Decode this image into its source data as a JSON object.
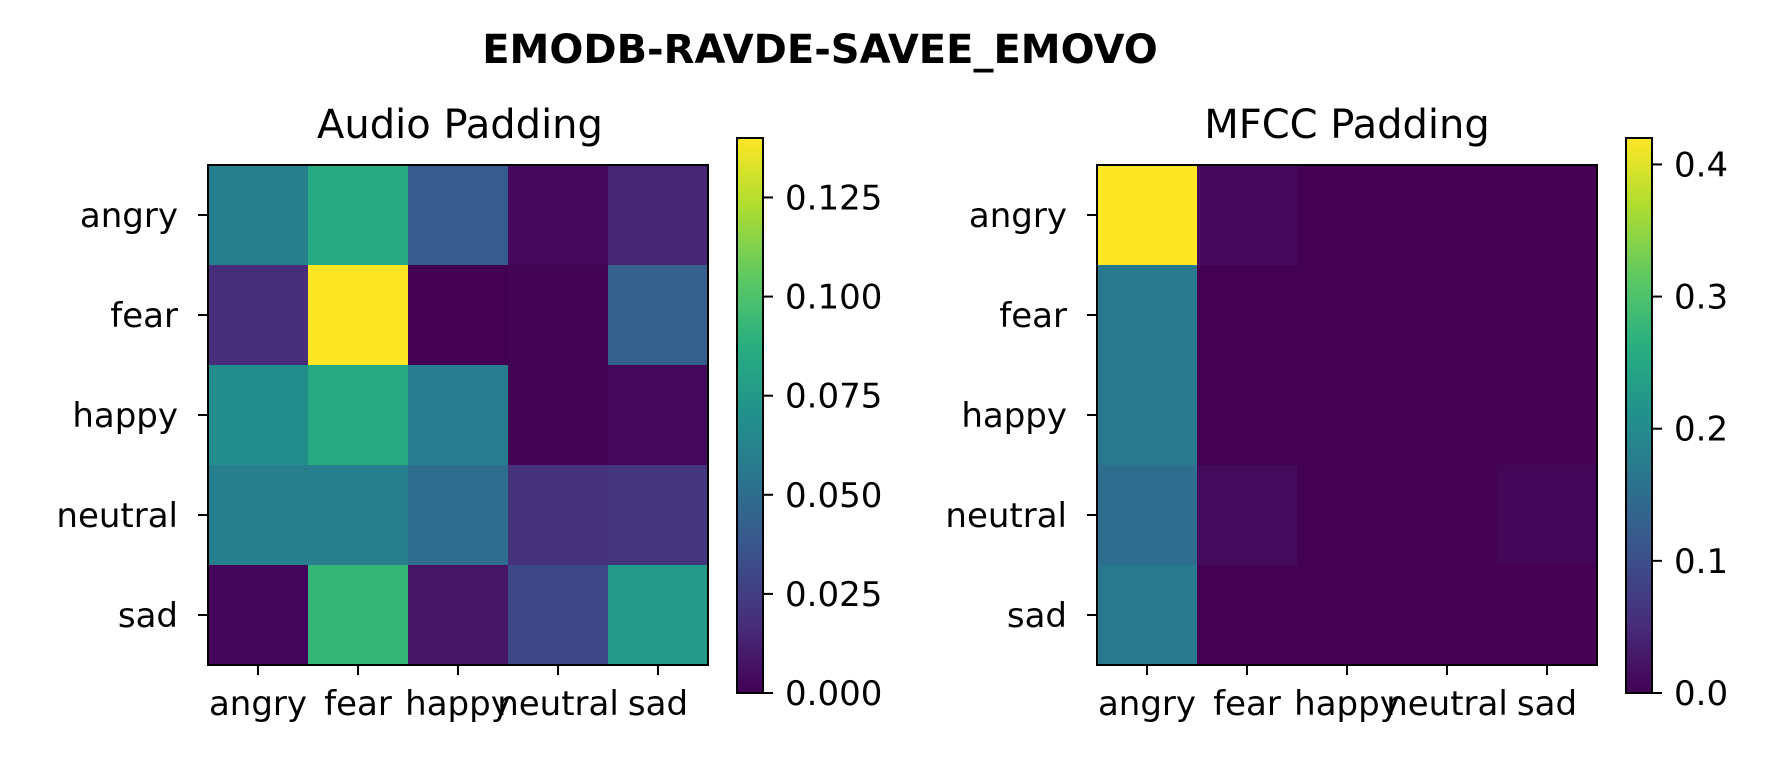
{
  "suptitle": "EMODB-RAVDE-SAVEE_EMOVO",
  "colormap": "viridis",
  "chart_data": [
    {
      "type": "heatmap",
      "title": "Audio Padding",
      "x_labels": [
        "angry",
        "fear",
        "happy",
        "neutral",
        "sad"
      ],
      "y_labels": [
        "angry",
        "fear",
        "happy",
        "neutral",
        "sad"
      ],
      "values": [
        [
          0.06,
          0.085,
          0.04,
          0.003,
          0.015
        ],
        [
          0.018,
          0.14,
          0.0,
          0.001,
          0.042
        ],
        [
          0.068,
          0.085,
          0.058,
          0.001,
          0.003
        ],
        [
          0.06,
          0.06,
          0.05,
          0.02,
          0.022
        ],
        [
          0.002,
          0.092,
          0.008,
          0.03,
          0.075
        ]
      ],
      "colorbar": {
        "min": 0.0,
        "max": 0.14,
        "ticks": [
          0.0,
          0.025,
          0.05,
          0.075,
          0.1,
          0.125
        ],
        "tick_labels": [
          "0.000",
          "0.025",
          "0.050",
          "0.075",
          "0.100",
          "0.125"
        ]
      }
    },
    {
      "type": "heatmap",
      "title": "MFCC Padding",
      "x_labels": [
        "angry",
        "fear",
        "happy",
        "neutral",
        "sad"
      ],
      "y_labels": [
        "angry",
        "fear",
        "happy",
        "neutral",
        "sad"
      ],
      "values": [
        [
          0.42,
          0.01,
          0.0,
          0.0,
          0.0
        ],
        [
          0.17,
          0.0,
          0.0,
          0.0,
          0.0
        ],
        [
          0.17,
          0.0,
          0.0,
          0.0,
          0.0
        ],
        [
          0.15,
          0.012,
          0.0,
          0.0,
          0.006
        ],
        [
          0.17,
          0.0,
          0.0,
          0.0,
          0.0
        ]
      ],
      "colorbar": {
        "min": 0.0,
        "max": 0.42,
        "ticks": [
          0.0,
          0.1,
          0.2,
          0.3,
          0.4
        ],
        "tick_labels": [
          "0.0",
          "0.1",
          "0.2",
          "0.3",
          "0.4"
        ]
      }
    }
  ]
}
